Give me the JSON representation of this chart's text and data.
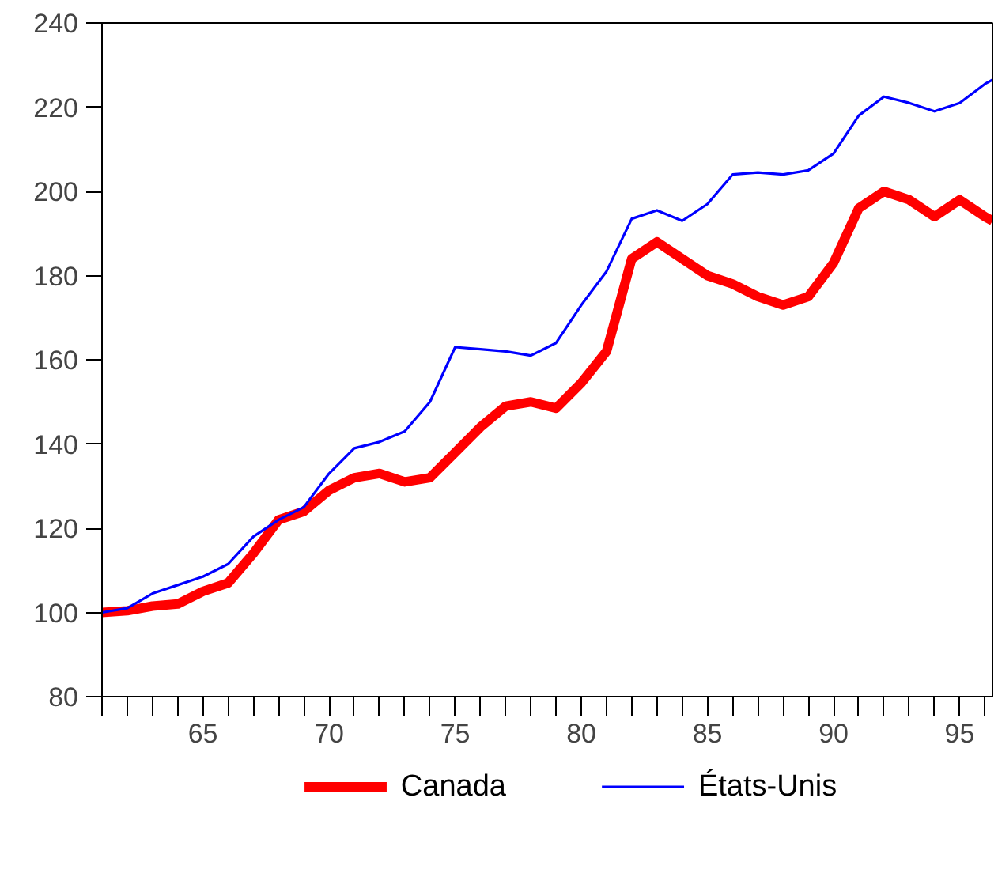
{
  "chart_data": {
    "type": "line",
    "x": [
      61,
      62,
      63,
      64,
      65,
      66,
      67,
      68,
      69,
      70,
      71,
      72,
      73,
      74,
      75,
      76,
      77,
      78,
      79,
      80,
      81,
      82,
      83,
      84,
      85,
      86,
      87,
      88,
      89,
      90,
      91,
      92,
      93,
      94,
      95,
      96,
      96.3
    ],
    "series": [
      {
        "name": "Canada",
        "color": "#ff0000",
        "values": [
          100,
          100.4,
          101.5,
          102,
          105,
          107,
          114,
          122,
          124,
          129,
          132,
          133,
          131,
          132,
          138,
          144,
          149,
          150,
          148.5,
          154.5,
          162,
          184,
          188,
          184,
          180,
          178,
          175,
          173,
          175,
          183,
          196,
          200,
          198,
          194,
          198,
          194,
          193
        ]
      },
      {
        "name": "États-Unis",
        "color": "#0000ff",
        "values": [
          100,
          101,
          104.5,
          106.5,
          108.5,
          111.5,
          118,
          122,
          125,
          133,
          139,
          140.5,
          143,
          150,
          163,
          162.5,
          162,
          161,
          164,
          173,
          181,
          193.5,
          195.5,
          193,
          197,
          204,
          204.5,
          204,
          205,
          209,
          218,
          222.5,
          221,
          219,
          221,
          225.5,
          226.5
        ]
      }
    ],
    "xlim": [
      61,
      96.3
    ],
    "ylim": [
      80,
      240
    ],
    "xticks": [
      {
        "value": 61,
        "label": null
      },
      {
        "value": 62,
        "label": null
      },
      {
        "value": 63,
        "label": null
      },
      {
        "value": 64,
        "label": null
      },
      65,
      {
        "value": 66,
        "label": null
      },
      {
        "value": 67,
        "label": null
      },
      {
        "value": 68,
        "label": null
      },
      {
        "value": 69,
        "label": null
      },
      70,
      {
        "value": 71,
        "label": null
      },
      {
        "value": 72,
        "label": null
      },
      {
        "value": 73,
        "label": null
      },
      {
        "value": 74,
        "label": null
      },
      75,
      {
        "value": 76,
        "label": null
      },
      {
        "value": 77,
        "label": null
      },
      {
        "value": 78,
        "label": null
      },
      {
        "value": 79,
        "label": null
      },
      80,
      {
        "value": 81,
        "label": null
      },
      {
        "value": 82,
        "label": null
      },
      {
        "value": 83,
        "label": null
      },
      {
        "value": 84,
        "label": null
      },
      85,
      {
        "value": 86,
        "label": null
      },
      {
        "value": 87,
        "label": null
      },
      {
        "value": 88,
        "label": null
      },
      {
        "value": 89,
        "label": null
      },
      90,
      {
        "value": 91,
        "label": null
      },
      {
        "value": 92,
        "label": null
      },
      {
        "value": 93,
        "label": null
      },
      {
        "value": 94,
        "label": null
      },
      95,
      {
        "value": 96,
        "label": null
      }
    ],
    "yticks": [
      80,
      100,
      120,
      140,
      160,
      180,
      200,
      220,
      240
    ],
    "legend": "bottom",
    "marker": "none",
    "line_style": "solid"
  }
}
